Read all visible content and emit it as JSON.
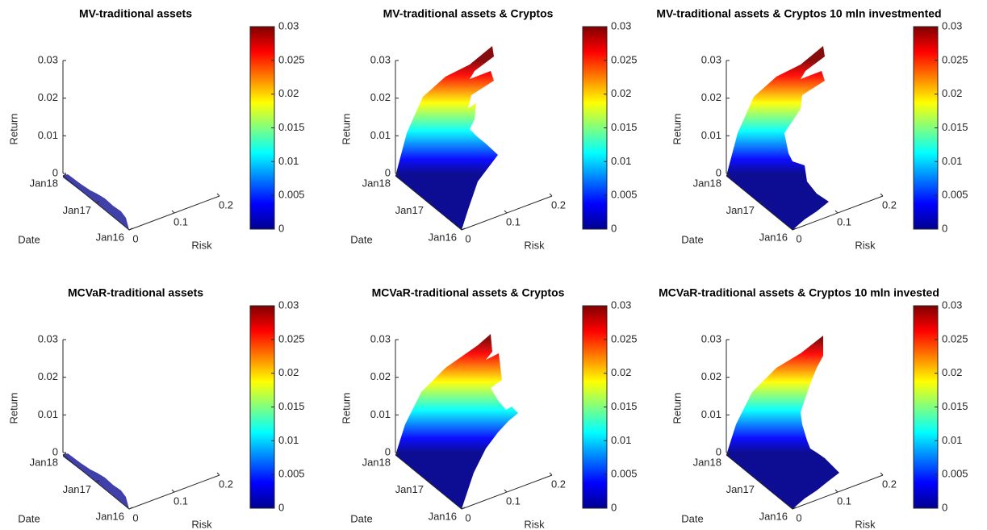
{
  "chart_data": [
    {
      "type": "surface",
      "title": "MV-traditional assets",
      "xlabel": "Risk",
      "ylabel": "Date",
      "zlabel": "Return",
      "xlim": [
        0,
        0.2
      ],
      "xticks": [
        0,
        0.1,
        0.2
      ],
      "date_ticks": [
        "Jan18",
        "Jan17",
        "Jan16"
      ],
      "zlim": [
        0,
        0.03
      ],
      "zticks": [
        0,
        0.01,
        0.02,
        0.03
      ],
      "clim": [
        0,
        0.03
      ],
      "cticks": [
        0,
        0.005,
        0.01,
        0.015,
        0.02,
        0.025,
        0.03
      ]
    },
    {
      "type": "surface",
      "title": "MV-traditional assets & Cryptos",
      "xlabel": "Risk",
      "ylabel": "Date",
      "zlabel": "Return",
      "xlim": [
        0,
        0.2
      ],
      "xticks": [
        0,
        0.1,
        0.2
      ],
      "date_ticks": [
        "Jan18",
        "Jan17",
        "Jan16"
      ],
      "zlim": [
        0,
        0.03
      ],
      "zticks": [
        0,
        0.01,
        0.02,
        0.03
      ],
      "clim": [
        0,
        0.03
      ],
      "cticks": [
        0,
        0.005,
        0.01,
        0.015,
        0.02,
        0.025,
        0.03
      ]
    },
    {
      "type": "surface",
      "title": "MV-traditional assets & Cryptos 10 mln investmented",
      "xlabel": "Risk",
      "ylabel": "Date",
      "zlabel": "Return",
      "xlim": [
        0,
        0.2
      ],
      "xticks": [
        0,
        0.1,
        0.2
      ],
      "date_ticks": [
        "Jan18",
        "Jan17",
        "Jan16"
      ],
      "zlim": [
        0,
        0.03
      ],
      "zticks": [
        0,
        0.01,
        0.02,
        0.03
      ],
      "clim": [
        0,
        0.03
      ],
      "cticks": [
        0,
        0.005,
        0.01,
        0.015,
        0.02,
        0.025,
        0.03
      ]
    },
    {
      "type": "surface",
      "title": "MCVaR-traditional assets",
      "xlabel": "Risk",
      "ylabel": "Date",
      "zlabel": "Return",
      "xlim": [
        0,
        0.2
      ],
      "xticks": [
        0,
        0.1,
        0.2
      ],
      "date_ticks": [
        "Jan18",
        "Jan17",
        "Jan16"
      ],
      "zlim": [
        0,
        0.03
      ],
      "zticks": [
        0,
        0.01,
        0.02,
        0.03
      ],
      "clim": [
        0,
        0.03
      ],
      "cticks": [
        0,
        0.005,
        0.01,
        0.015,
        0.02,
        0.025,
        0.03
      ]
    },
    {
      "type": "surface",
      "title": "MCVaR-traditional assets & Cryptos",
      "xlabel": "Risk",
      "ylabel": "Date",
      "zlabel": "Return",
      "xlim": [
        0,
        0.2
      ],
      "xticks": [
        0,
        0.1,
        0.2
      ],
      "date_ticks": [
        "Jan18",
        "Jan17",
        "Jan16"
      ],
      "zlim": [
        0,
        0.03
      ],
      "zticks": [
        0,
        0.01,
        0.02,
        0.03
      ],
      "clim": [
        0,
        0.03
      ],
      "cticks": [
        0,
        0.005,
        0.01,
        0.015,
        0.02,
        0.025,
        0.03
      ]
    },
    {
      "type": "surface",
      "title": "MCVaR-traditional assets & Cryptos 10 mln invested",
      "xlabel": "Risk",
      "ylabel": "Date",
      "zlabel": "Return",
      "xlim": [
        0,
        0.2
      ],
      "xticks": [
        0,
        0.1,
        0.2
      ],
      "date_ticks": [
        "Jan18",
        "Jan17",
        "Jan16"
      ],
      "zlim": [
        0,
        0.03
      ],
      "zticks": [
        0,
        0.01,
        0.02,
        0.03
      ],
      "clim": [
        0,
        0.03
      ],
      "cticks": [
        0,
        0.005,
        0.01,
        0.015,
        0.02,
        0.025,
        0.03
      ]
    }
  ]
}
